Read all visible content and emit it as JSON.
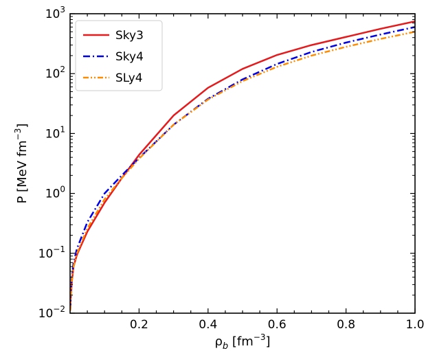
{
  "chart_data": {
    "type": "line",
    "xlabel": "ρ",
    "xlabel_sub": "b",
    "xlabel_unit": " [fm",
    "xlabel_unit_sup": "−3",
    "xlabel_unit_end": "]",
    "ylabel": "P [MeV fm",
    "ylabel_sup": "−3",
    "ylabel_end": "]",
    "xlim": [
      0.0,
      1.0
    ],
    "ylim": [
      0.01,
      1000
    ],
    "yscale": "log",
    "grid": false,
    "legend_position": "top-left",
    "x_ticks": [
      {
        "value": 0.2,
        "label": "0.2"
      },
      {
        "value": 0.4,
        "label": "0.4"
      },
      {
        "value": 0.6,
        "label": "0.6"
      },
      {
        "value": 0.8,
        "label": "0.8"
      },
      {
        "value": 1.0,
        "label": "1.0"
      }
    ],
    "y_ticks": [
      {
        "value": 0.01,
        "base": "10",
        "exp": "−2"
      },
      {
        "value": 0.1,
        "base": "10",
        "exp": "−1"
      },
      {
        "value": 1,
        "base": "10",
        "exp": "0"
      },
      {
        "value": 10,
        "base": "10",
        "exp": "1"
      },
      {
        "value": 100,
        "base": "10",
        "exp": "2"
      },
      {
        "value": 1000,
        "base": "10",
        "exp": "3"
      }
    ],
    "series": [
      {
        "name": "Sky3",
        "color": "#e41a1c",
        "dash": "solid",
        "x": [
          0.0005,
          0.002,
          0.005,
          0.01,
          0.02,
          0.05,
          0.1,
          0.15,
          0.2,
          0.3,
          0.4,
          0.5,
          0.6,
          0.7,
          0.8,
          0.9,
          1.0
        ],
        "y": [
          0.011,
          0.018,
          0.033,
          0.06,
          0.095,
          0.23,
          0.7,
          1.8,
          4.4,
          20,
          58,
          120,
          205,
          300,
          410,
          560,
          745
        ]
      },
      {
        "name": "Sky4",
        "color": "#0000e6",
        "dash": "dashdot",
        "x": [
          0.0005,
          0.002,
          0.005,
          0.01,
          0.02,
          0.05,
          0.1,
          0.15,
          0.2,
          0.3,
          0.4,
          0.5,
          0.6,
          0.7,
          0.8,
          0.9,
          1.0
        ],
        "y": [
          0.011,
          0.02,
          0.04,
          0.07,
          0.12,
          0.33,
          1.0,
          2.0,
          3.9,
          14,
          38,
          80,
          145,
          230,
          330,
          450,
          600
        ]
      },
      {
        "name": "SLy4",
        "color": "#ff8c00",
        "dash": "dashdotdot",
        "x": [
          0.0005,
          0.002,
          0.005,
          0.01,
          0.02,
          0.05,
          0.1,
          0.15,
          0.2,
          0.3,
          0.4,
          0.5,
          0.6,
          0.7,
          0.8,
          0.9,
          1.0
        ],
        "y": [
          0.011,
          0.019,
          0.035,
          0.06,
          0.1,
          0.26,
          0.8,
          1.8,
          3.8,
          14,
          37,
          75,
          130,
          200,
          280,
          380,
          500
        ]
      }
    ]
  }
}
